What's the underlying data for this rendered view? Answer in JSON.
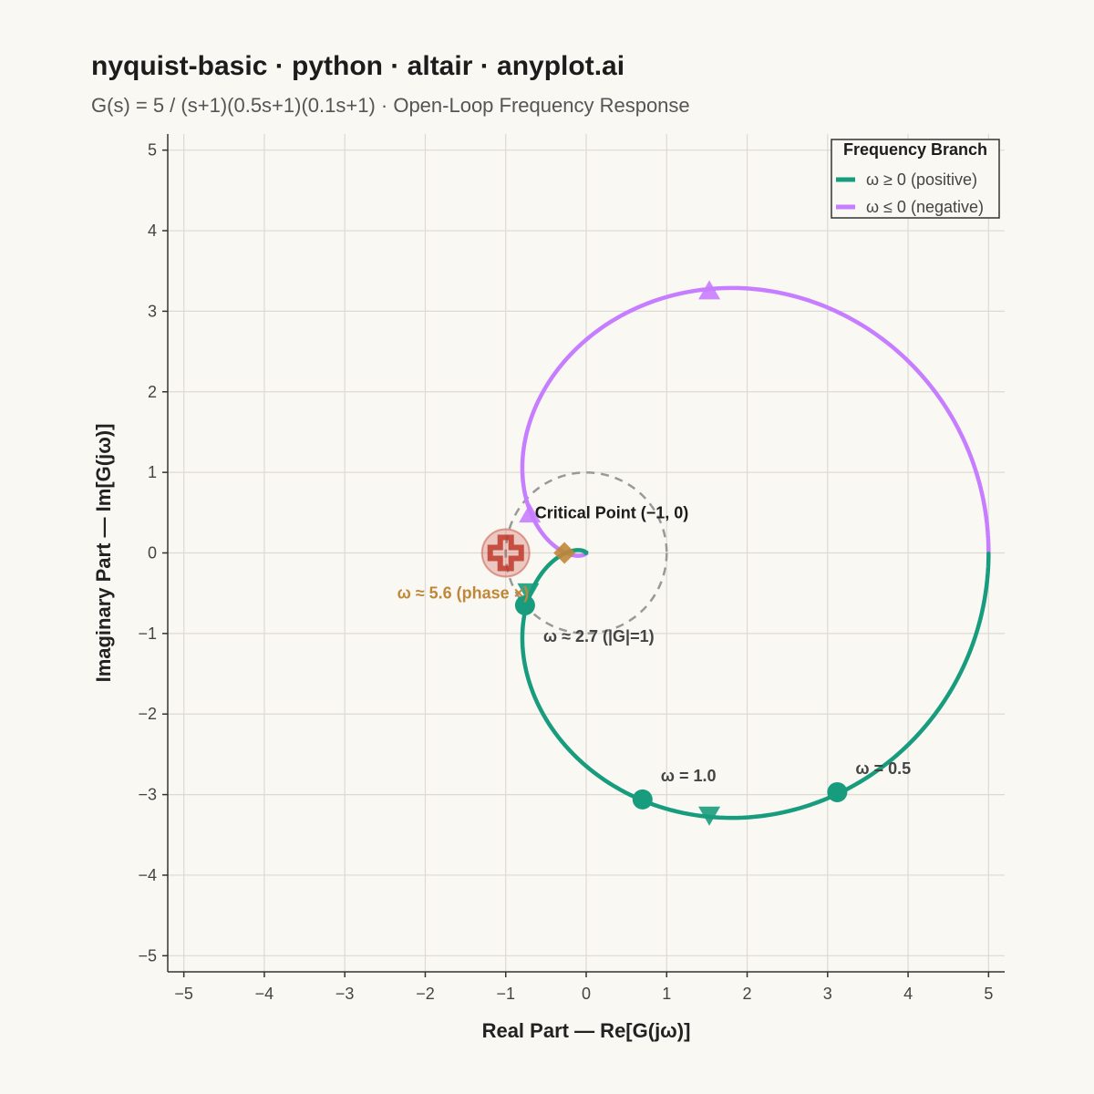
{
  "header": {
    "title": "nyquist-basic · python · altair · anyplot.ai",
    "subtitle": "G(s) = 5 / (s+1)(0.5s+1)(0.1s+1) · Open-Loop Frequency Response"
  },
  "chart_data": {
    "type": "line",
    "title": "nyquist-basic · python · altair · anyplot.ai",
    "subtitle": "G(s) = 5 / (s+1)(0.5s+1)(0.1s+1) · Open-Loop Frequency Response",
    "xlabel": "Real Part — Re[G(jω)]",
    "ylabel": "Imaginary Part — Im[G(jω)]",
    "xlim": [
      -5.2,
      5.2
    ],
    "ylim": [
      -5.2,
      5.2
    ],
    "xticks": [
      -5,
      -4,
      -3,
      -2,
      -1,
      0,
      1,
      2,
      3,
      4,
      5
    ],
    "yticks": [
      -5,
      -4,
      -3,
      -2,
      -1,
      0,
      1,
      2,
      3,
      4,
      5
    ],
    "x_tick_labels": [
      "−5",
      "−4",
      "−3",
      "−2",
      "−1",
      "0",
      "1",
      "2",
      "3",
      "4",
      "5"
    ],
    "y_tick_labels": [
      "−5",
      "−4",
      "−3",
      "−2",
      "−1",
      "0",
      "1",
      "2",
      "3",
      "4",
      "5"
    ],
    "grid": true,
    "transfer_function": {
      "gain": 5,
      "time_constants": [
        1,
        0.5,
        0.1
      ]
    },
    "series": [
      {
        "name": "ω ≥ 0 (positive)",
        "color": "#179c7d",
        "branch": "positive"
      },
      {
        "name": "ω ≤ 0 (negative)",
        "color": "#c77dff",
        "branch": "negative"
      }
    ],
    "direction_arrows": [
      {
        "branch": "positive",
        "x": 1.53,
        "y": -3.25,
        "shape": "triangle-down"
      },
      {
        "branch": "positive",
        "x": -0.72,
        "y": -0.48,
        "shape": "triangle-down"
      },
      {
        "branch": "negative",
        "x": 1.53,
        "y": 3.25,
        "shape": "triangle-up"
      },
      {
        "branch": "negative",
        "x": -0.7,
        "y": 0.48,
        "shape": "triangle-up"
      }
    ],
    "frequency_markers": [
      {
        "label": "ω = 0.5",
        "x": 3.12,
        "y": -2.97
      },
      {
        "label": "ω = 1.0",
        "x": 0.7,
        "y": -3.06
      },
      {
        "label": "ω ≈ 2.7 (|G|=1)",
        "x": -0.76,
        "y": -0.65
      }
    ],
    "phase_crossover": {
      "label": "ω ≈ 5.6 (phase ×)",
      "x": -0.27,
      "y": 0.0,
      "color": "#c0873a"
    },
    "critical_point": {
      "label": "Critical Point (−1, 0)",
      "x": -1,
      "y": 0,
      "color": "#c0392b"
    },
    "unit_circle": {
      "radius": 1,
      "color": "#999999"
    },
    "legend": {
      "title": "Frequency Branch",
      "position": "top-right",
      "entries": [
        "ω ≥ 0 (positive)",
        "ω ≤ 0 (negative)"
      ]
    }
  }
}
